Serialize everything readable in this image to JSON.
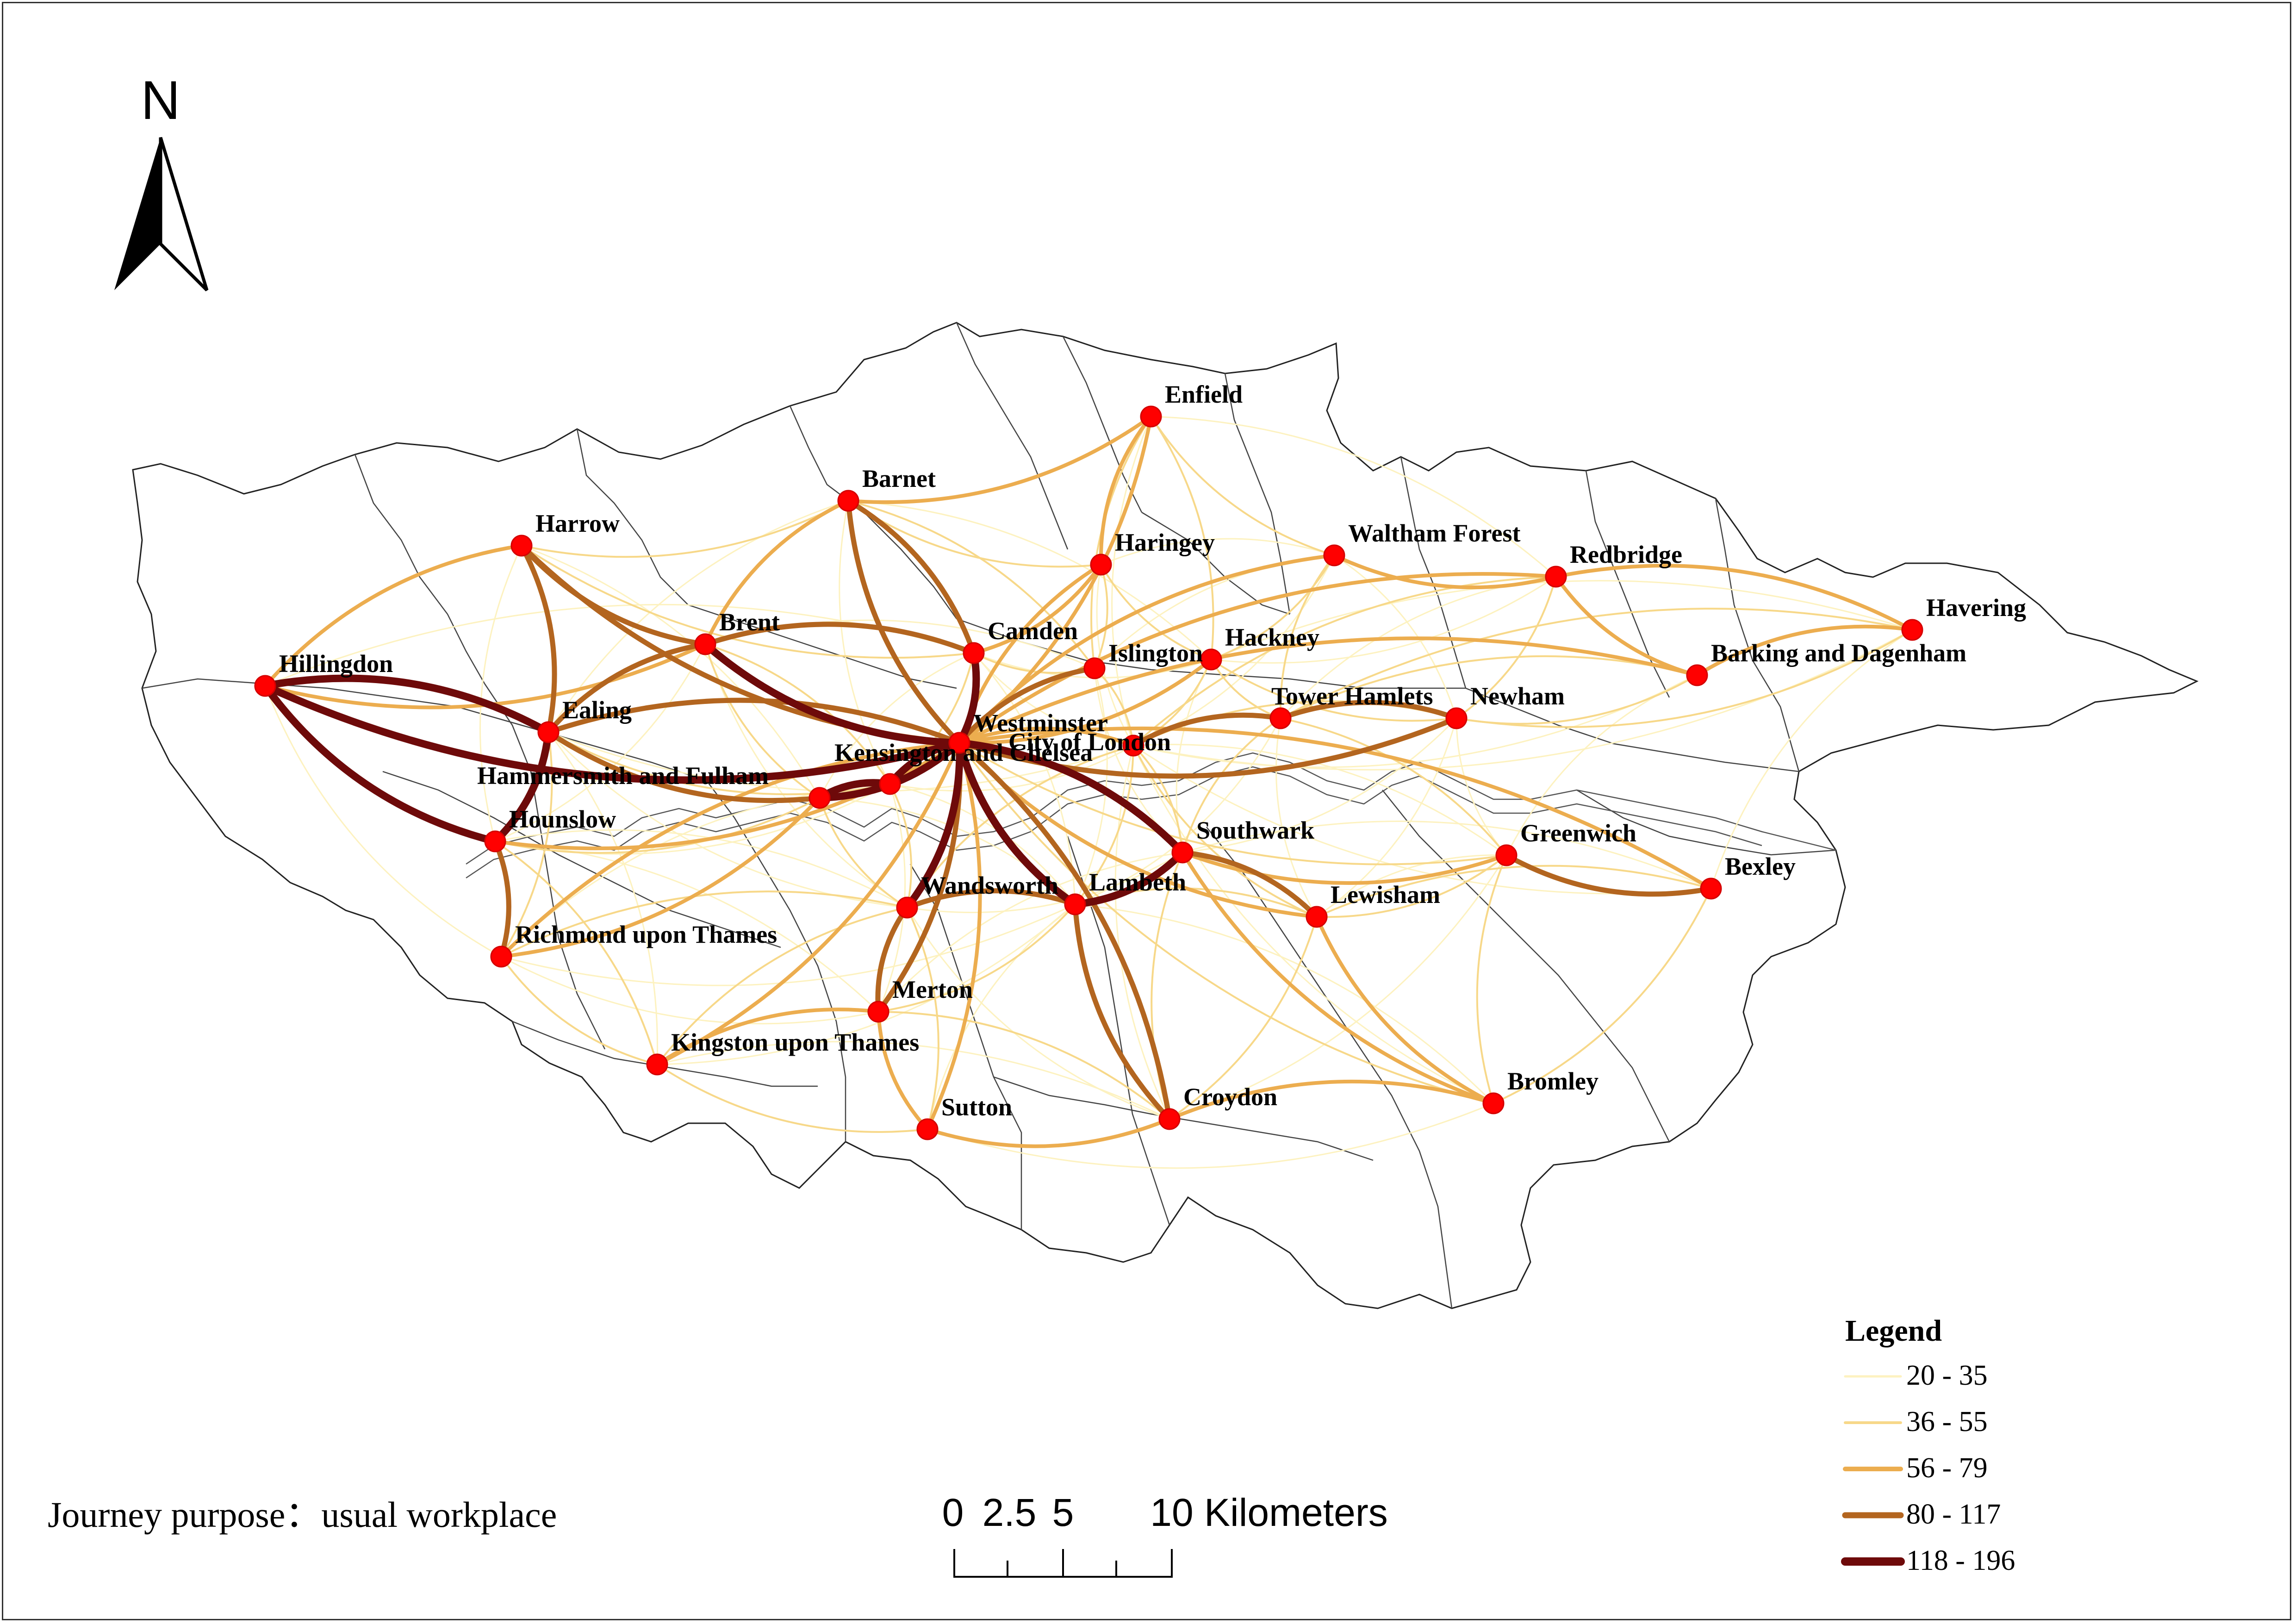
{
  "journey_purpose": "Journey purpose：usual workplace",
  "north_arrow": {
    "letter": "N",
    "icon": "north-arrow-icon"
  },
  "scale_bar": {
    "labels": [
      "0",
      "2.5",
      "5",
      "10"
    ],
    "unit": "Kilometers"
  },
  "legend": {
    "title": "Legend",
    "classes": [
      {
        "label": "20 - 35",
        "color": "#fdf2c0",
        "width_class": 1
      },
      {
        "label": "36 - 55",
        "color": "#f7d889",
        "width_class": 2
      },
      {
        "label": "56 - 79",
        "color": "#ecad4f",
        "width_class": 3
      },
      {
        "label": "80 - 117",
        "color": "#b3651f",
        "width_class": 4
      },
      {
        "label": "118 - 196",
        "color": "#6e0a0a",
        "width_class": 5
      }
    ]
  },
  "colors": {
    "node": "#ff0000",
    "boundary": "#222222"
  },
  "boroughs": [
    {
      "id": "enfield",
      "name": "Enfield"
    },
    {
      "id": "barnet",
      "name": "Barnet"
    },
    {
      "id": "harrow",
      "name": "Harrow"
    },
    {
      "id": "haringey",
      "name": "Haringey"
    },
    {
      "id": "waltham",
      "name": "Waltham Forest"
    },
    {
      "id": "redbridge",
      "name": "Redbridge"
    },
    {
      "id": "havering",
      "name": "Havering"
    },
    {
      "id": "brent",
      "name": "Brent"
    },
    {
      "id": "camden",
      "name": "Camden"
    },
    {
      "id": "islington",
      "name": "Islington"
    },
    {
      "id": "hackney",
      "name": "Hackney"
    },
    {
      "id": "barking",
      "name": "Barking and Dagenham"
    },
    {
      "id": "hillingdon",
      "name": "Hillingdon"
    },
    {
      "id": "ealing",
      "name": "Ealing"
    },
    {
      "id": "westminster",
      "name": "Westminster"
    },
    {
      "id": "towerhamlets",
      "name": "Tower Hamlets"
    },
    {
      "id": "newham",
      "name": "Newham"
    },
    {
      "id": "cityoflondon",
      "name": "City of London"
    },
    {
      "id": "hammersmith",
      "name": "Hammersmith and Fulham"
    },
    {
      "id": "kensington",
      "name": "Kensington and Chelsea"
    },
    {
      "id": "hounslow",
      "name": "Hounslow"
    },
    {
      "id": "southwark",
      "name": "Southwark"
    },
    {
      "id": "greenwich",
      "name": "Greenwich"
    },
    {
      "id": "bexley",
      "name": "Bexley"
    },
    {
      "id": "wandsworth",
      "name": "Wandsworth"
    },
    {
      "id": "lambeth",
      "name": "Lambeth"
    },
    {
      "id": "lewisham",
      "name": "Lewisham"
    },
    {
      "id": "richmond",
      "name": "Richmond upon Thames"
    },
    {
      "id": "merton",
      "name": "Merton"
    },
    {
      "id": "kingston",
      "name": "Kingston upon Thames"
    },
    {
      "id": "sutton",
      "name": "Sutton"
    },
    {
      "id": "croydon",
      "name": "Croydon"
    },
    {
      "id": "bromley",
      "name": "Bromley"
    }
  ],
  "flows": [
    {
      "from": "hillingdon",
      "to": "westminster",
      "class": 5
    },
    {
      "from": "hillingdon",
      "to": "ealing",
      "class": 5
    },
    {
      "from": "hillingdon",
      "to": "hounslow",
      "class": 5
    },
    {
      "from": "ealing",
      "to": "hounslow",
      "class": 5
    },
    {
      "from": "ealing",
      "to": "westminster",
      "class": 4
    },
    {
      "from": "ealing",
      "to": "hammersmith",
      "class": 4
    },
    {
      "from": "brent",
      "to": "westminster",
      "class": 5
    },
    {
      "from": "brent",
      "to": "harrow",
      "class": 4
    },
    {
      "from": "brent",
      "to": "ealing",
      "class": 4
    },
    {
      "from": "brent",
      "to": "camden",
      "class": 4
    },
    {
      "from": "harrow",
      "to": "westminster",
      "class": 4
    },
    {
      "from": "harrow",
      "to": "ealing",
      "class": 4
    },
    {
      "from": "barnet",
      "to": "westminster",
      "class": 4
    },
    {
      "from": "barnet",
      "to": "camden",
      "class": 4
    },
    {
      "from": "barnet",
      "to": "brent",
      "class": 3
    },
    {
      "from": "camden",
      "to": "westminster",
      "class": 5
    },
    {
      "from": "islington",
      "to": "westminster",
      "class": 4
    },
    {
      "from": "hackney",
      "to": "westminster",
      "class": 3
    },
    {
      "from": "wandsworth",
      "to": "westminster",
      "class": 5
    },
    {
      "from": "lambeth",
      "to": "westminster",
      "class": 5
    },
    {
      "from": "southwark",
      "to": "westminster",
      "class": 5
    },
    {
      "from": "kensington",
      "to": "westminster",
      "class": 5
    },
    {
      "from": "hammersmith",
      "to": "westminster",
      "class": 5
    },
    {
      "from": "hammersmith",
      "to": "kensington",
      "class": 5
    },
    {
      "from": "lambeth",
      "to": "southwark",
      "class": 5
    },
    {
      "from": "wandsworth",
      "to": "lambeth",
      "class": 4
    },
    {
      "from": "merton",
      "to": "westminster",
      "class": 4
    },
    {
      "from": "merton",
      "to": "wandsworth",
      "class": 4
    },
    {
      "from": "croydon",
      "to": "westminster",
      "class": 4
    },
    {
      "from": "croydon",
      "to": "lambeth",
      "class": 4
    },
    {
      "from": "lewisham",
      "to": "southwark",
      "class": 4
    },
    {
      "from": "towerhamlets",
      "to": "newham",
      "class": 4
    },
    {
      "from": "towerhamlets",
      "to": "cityoflondon",
      "class": 4
    },
    {
      "from": "newham",
      "to": "westminster",
      "class": 4
    },
    {
      "from": "greenwich",
      "to": "bexley",
      "class": 4
    },
    {
      "from": "hounslow",
      "to": "richmond",
      "class": 4
    },
    {
      "from": "hounslow",
      "to": "westminster",
      "class": 3
    },
    {
      "from": "enfield",
      "to": "westminster",
      "class": 3
    },
    {
      "from": "enfield",
      "to": "haringey",
      "class": 3
    },
    {
      "from": "enfield",
      "to": "barnet",
      "class": 3
    },
    {
      "from": "haringey",
      "to": "westminster",
      "class": 3
    },
    {
      "from": "haringey",
      "to": "camden",
      "class": 3
    },
    {
      "from": "redbridge",
      "to": "westminster",
      "class": 3
    },
    {
      "from": "redbridge",
      "to": "havering",
      "class": 3
    },
    {
      "from": "redbridge",
      "to": "barking",
      "class": 3
    },
    {
      "from": "redbridge",
      "to": "waltham",
      "class": 3
    },
    {
      "from": "waltham",
      "to": "westminster",
      "class": 3
    },
    {
      "from": "barking",
      "to": "havering",
      "class": 3
    },
    {
      "from": "barking",
      "to": "westminster",
      "class": 3
    },
    {
      "from": "bromley",
      "to": "lewisham",
      "class": 3
    },
    {
      "from": "bromley",
      "to": "croydon",
      "class": 3
    },
    {
      "from": "bromley",
      "to": "southwark",
      "class": 3
    },
    {
      "from": "bexley",
      "to": "westminster",
      "class": 3
    },
    {
      "from": "greenwich",
      "to": "southwark",
      "class": 3
    },
    {
      "from": "sutton",
      "to": "croydon",
      "class": 3
    },
    {
      "from": "sutton",
      "to": "merton",
      "class": 3
    },
    {
      "from": "sutton",
      "to": "westminster",
      "class": 3
    },
    {
      "from": "kingston",
      "to": "merton",
      "class": 3
    },
    {
      "from": "kingston",
      "to": "westminster",
      "class": 3
    },
    {
      "from": "richmond",
      "to": "westminster",
      "class": 3
    },
    {
      "from": "richmond",
      "to": "hammersmith",
      "class": 3
    },
    {
      "from": "lewisham",
      "to": "westminster",
      "class": 3
    },
    {
      "from": "cityoflondon",
      "to": "westminster",
      "class": 3
    },
    {
      "from": "hillingdon",
      "to": "harrow",
      "class": 3
    },
    {
      "from": "hillingdon",
      "to": "brent",
      "class": 3
    },
    {
      "from": "enfield",
      "to": "waltham",
      "class": 2
    },
    {
      "from": "enfield",
      "to": "hackney",
      "class": 2
    },
    {
      "from": "enfield",
      "to": "islington",
      "class": 2
    },
    {
      "from": "barnet",
      "to": "harrow",
      "class": 2
    },
    {
      "from": "barnet",
      "to": "haringey",
      "class": 2
    },
    {
      "from": "barnet",
      "to": "islington",
      "class": 2
    },
    {
      "from": "harrow",
      "to": "camden",
      "class": 2
    },
    {
      "from": "haringey",
      "to": "islington",
      "class": 2
    },
    {
      "from": "haringey",
      "to": "hackney",
      "class": 2
    },
    {
      "from": "waltham",
      "to": "hackney",
      "class": 2
    },
    {
      "from": "waltham",
      "to": "towerhamlets",
      "class": 2
    },
    {
      "from": "redbridge",
      "to": "newham",
      "class": 2
    },
    {
      "from": "redbridge",
      "to": "cityoflondon",
      "class": 2
    },
    {
      "from": "havering",
      "to": "newham",
      "class": 2
    },
    {
      "from": "havering",
      "to": "towerhamlets",
      "class": 2
    },
    {
      "from": "barking",
      "to": "newham",
      "class": 2
    },
    {
      "from": "barking",
      "to": "towerhamlets",
      "class": 2
    },
    {
      "from": "hackney",
      "to": "cityoflondon",
      "class": 2
    },
    {
      "from": "hackney",
      "to": "towerhamlets",
      "class": 2
    },
    {
      "from": "islington",
      "to": "cityoflondon",
      "class": 2
    },
    {
      "from": "camden",
      "to": "islington",
      "class": 2
    },
    {
      "from": "camden",
      "to": "kensington",
      "class": 2
    },
    {
      "from": "brent",
      "to": "hammersmith",
      "class": 2
    },
    {
      "from": "brent",
      "to": "kensington",
      "class": 2
    },
    {
      "from": "ealing",
      "to": "kensington",
      "class": 2
    },
    {
      "from": "ealing",
      "to": "richmond",
      "class": 2
    },
    {
      "from": "hounslow",
      "to": "hammersmith",
      "class": 2
    },
    {
      "from": "hounslow",
      "to": "kingston",
      "class": 2
    },
    {
      "from": "richmond",
      "to": "kingston",
      "class": 2
    },
    {
      "from": "richmond",
      "to": "wandsworth",
      "class": 2
    },
    {
      "from": "kingston",
      "to": "sutton",
      "class": 2
    },
    {
      "from": "kingston",
      "to": "wandsworth",
      "class": 2
    },
    {
      "from": "merton",
      "to": "lambeth",
      "class": 2
    },
    {
      "from": "merton",
      "to": "croydon",
      "class": 2
    },
    {
      "from": "sutton",
      "to": "wandsworth",
      "class": 2
    },
    {
      "from": "croydon",
      "to": "southwark",
      "class": 2
    },
    {
      "from": "croydon",
      "to": "lewisham",
      "class": 2
    },
    {
      "from": "bromley",
      "to": "greenwich",
      "class": 2
    },
    {
      "from": "bromley",
      "to": "bexley",
      "class": 2
    },
    {
      "from": "bromley",
      "to": "westminster",
      "class": 2
    },
    {
      "from": "bexley",
      "to": "lewisham",
      "class": 2
    },
    {
      "from": "greenwich",
      "to": "lewisham",
      "class": 2
    },
    {
      "from": "greenwich",
      "to": "towerhamlets",
      "class": 2
    },
    {
      "from": "greenwich",
      "to": "westminster",
      "class": 2
    },
    {
      "from": "lewisham",
      "to": "lambeth",
      "class": 2
    },
    {
      "from": "lewisham",
      "to": "cityoflondon",
      "class": 2
    },
    {
      "from": "southwark",
      "to": "cityoflondon",
      "class": 2
    },
    {
      "from": "southwark",
      "to": "towerhamlets",
      "class": 2
    },
    {
      "from": "lambeth",
      "to": "cityoflondon",
      "class": 2
    },
    {
      "from": "wandsworth",
      "to": "hammersmith",
      "class": 2
    },
    {
      "from": "wandsworth",
      "to": "kensington",
      "class": 2
    },
    {
      "from": "wandsworth",
      "to": "cityoflondon",
      "class": 2
    },
    {
      "from": "newham",
      "to": "cityoflondon",
      "class": 2
    },
    {
      "from": "newham",
      "to": "hackney",
      "class": 2
    },
    {
      "from": "hillingdon",
      "to": "richmond",
      "class": 1
    },
    {
      "from": "hillingdon",
      "to": "camden",
      "class": 1
    },
    {
      "from": "harrow",
      "to": "hounslow",
      "class": 1
    },
    {
      "from": "harrow",
      "to": "hammersmith",
      "class": 1
    },
    {
      "from": "barnet",
      "to": "ealing",
      "class": 1
    },
    {
      "from": "barnet",
      "to": "hackney",
      "class": 1
    },
    {
      "from": "barnet",
      "to": "kensington",
      "class": 1
    },
    {
      "from": "enfield",
      "to": "redbridge",
      "class": 1
    },
    {
      "from": "enfield",
      "to": "cityoflondon",
      "class": 1
    },
    {
      "from": "haringey",
      "to": "waltham",
      "class": 1
    },
    {
      "from": "haringey",
      "to": "cityoflondon",
      "class": 1
    },
    {
      "from": "waltham",
      "to": "newham",
      "class": 1
    },
    {
      "from": "waltham",
      "to": "islington",
      "class": 1
    },
    {
      "from": "waltham",
      "to": "cityoflondon",
      "class": 1
    },
    {
      "from": "havering",
      "to": "hackney",
      "class": 1
    },
    {
      "from": "havering",
      "to": "cityoflondon",
      "class": 1
    },
    {
      "from": "havering",
      "to": "bexley",
      "class": 1
    },
    {
      "from": "barking",
      "to": "cityoflondon",
      "class": 1
    },
    {
      "from": "barking",
      "to": "greenwich",
      "class": 1
    },
    {
      "from": "redbridge",
      "to": "hackney",
      "class": 1
    },
    {
      "from": "redbridge",
      "to": "towerhamlets",
      "class": 1
    },
    {
      "from": "newham",
      "to": "southwark",
      "class": 1
    },
    {
      "from": "newham",
      "to": "greenwich",
      "class": 1
    },
    {
      "from": "newham",
      "to": "lewisham",
      "class": 1
    },
    {
      "from": "towerhamlets",
      "to": "lewisham",
      "class": 1
    },
    {
      "from": "towerhamlets",
      "to": "lambeth",
      "class": 1
    },
    {
      "from": "hackney",
      "to": "southwark",
      "class": 1
    },
    {
      "from": "hackney",
      "to": "camden",
      "class": 1
    },
    {
      "from": "islington",
      "to": "southwark",
      "class": 1
    },
    {
      "from": "islington",
      "to": "lambeth",
      "class": 1
    },
    {
      "from": "camden",
      "to": "cityoflondon",
      "class": 1
    },
    {
      "from": "camden",
      "to": "lambeth",
      "class": 1
    },
    {
      "from": "camden",
      "to": "hammersmith",
      "class": 1
    },
    {
      "from": "brent",
      "to": "hounslow",
      "class": 1
    },
    {
      "from": "brent",
      "to": "wandsworth",
      "class": 1
    },
    {
      "from": "brent",
      "to": "islington",
      "class": 1
    },
    {
      "from": "ealing",
      "to": "wandsworth",
      "class": 1
    },
    {
      "from": "ealing",
      "to": "kingston",
      "class": 1
    },
    {
      "from": "ealing",
      "to": "cityoflondon",
      "class": 1
    },
    {
      "from": "hounslow",
      "to": "wandsworth",
      "class": 1
    },
    {
      "from": "hounslow",
      "to": "kensington",
      "class": 1
    },
    {
      "from": "hounslow",
      "to": "merton",
      "class": 1
    },
    {
      "from": "richmond",
      "to": "merton",
      "class": 1
    },
    {
      "from": "richmond",
      "to": "kensington",
      "class": 1
    },
    {
      "from": "richmond",
      "to": "lambeth",
      "class": 1
    },
    {
      "from": "kingston",
      "to": "croydon",
      "class": 1
    },
    {
      "from": "kingston",
      "to": "lambeth",
      "class": 1
    },
    {
      "from": "sutton",
      "to": "lambeth",
      "class": 1
    },
    {
      "from": "sutton",
      "to": "bromley",
      "class": 1
    },
    {
      "from": "merton",
      "to": "southwark",
      "class": 1
    },
    {
      "from": "merton",
      "to": "kensington",
      "class": 1
    },
    {
      "from": "croydon",
      "to": "wandsworth",
      "class": 1
    },
    {
      "from": "croydon",
      "to": "greenwich",
      "class": 1
    },
    {
      "from": "croydon",
      "to": "cityoflondon",
      "class": 1
    },
    {
      "from": "bromley",
      "to": "lambeth",
      "class": 1
    },
    {
      "from": "bromley",
      "to": "cityoflondon",
      "class": 1
    },
    {
      "from": "bexley",
      "to": "southwark",
      "class": 1
    },
    {
      "from": "bexley",
      "to": "cityoflondon",
      "class": 1
    },
    {
      "from": "greenwich",
      "to": "cityoflondon",
      "class": 1
    },
    {
      "from": "lewisham",
      "to": "greenwich",
      "class": 1
    },
    {
      "from": "wandsworth",
      "to": "southwark",
      "class": 1
    },
    {
      "from": "kensington",
      "to": "lambeth",
      "class": 1
    },
    {
      "from": "kensington",
      "to": "cityoflondon",
      "class": 1
    },
    {
      "from": "hammersmith",
      "to": "lambeth",
      "class": 1
    }
  ]
}
